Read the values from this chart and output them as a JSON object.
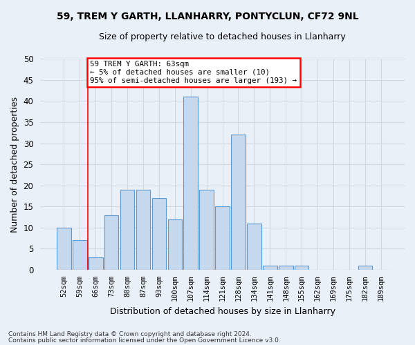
{
  "title1": "59, TREM Y GARTH, LLANHARRY, PONTYCLUN, CF72 9NL",
  "title2": "Size of property relative to detached houses in Llanharry",
  "xlabel": "Distribution of detached houses by size in Llanharry",
  "ylabel": "Number of detached properties",
  "categories": [
    "52sqm",
    "59sqm",
    "66sqm",
    "73sqm",
    "80sqm",
    "87sqm",
    "93sqm",
    "100sqm",
    "107sqm",
    "114sqm",
    "121sqm",
    "128sqm",
    "134sqm",
    "141sqm",
    "148sqm",
    "155sqm",
    "162sqm",
    "169sqm",
    "175sqm",
    "182sqm",
    "189sqm"
  ],
  "values": [
    10,
    7,
    3,
    13,
    19,
    19,
    17,
    12,
    41,
    19,
    15,
    32,
    11,
    1,
    1,
    1,
    0,
    0,
    0,
    1,
    0
  ],
  "bar_color": "#c5d8ed",
  "bar_edge_color": "#5b9bd5",
  "grid_color": "#d0d8e4",
  "background_color": "#eaf0f8",
  "red_line_x": 1.5,
  "annotation_text": "59 TREM Y GARTH: 63sqm\n← 5% of detached houses are smaller (10)\n95% of semi-detached houses are larger (193) →",
  "annotation_box_color": "white",
  "annotation_box_edge": "red",
  "footnote1": "Contains HM Land Registry data © Crown copyright and database right 2024.",
  "footnote2": "Contains public sector information licensed under the Open Government Licence v3.0.",
  "ylim": [
    0,
    50
  ],
  "yticks": [
    0,
    5,
    10,
    15,
    20,
    25,
    30,
    35,
    40,
    45,
    50
  ]
}
